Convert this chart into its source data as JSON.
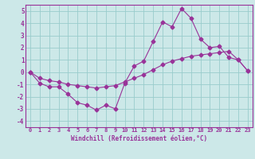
{
  "xlabel": "Windchill (Refroidissement éolien,°C)",
  "line1_x": [
    0,
    1,
    2,
    3,
    4,
    5,
    6,
    7,
    8,
    9,
    10,
    11,
    12,
    13,
    14,
    15,
    16,
    17,
    18,
    19,
    20,
    21,
    22,
    23
  ],
  "line1_y": [
    0,
    -0.9,
    -1.2,
    -1.2,
    -1.8,
    -2.5,
    -2.7,
    -3.1,
    -2.7,
    -3.0,
    -0.9,
    0.5,
    0.9,
    2.5,
    4.1,
    3.7,
    5.2,
    4.4,
    2.7,
    2.0,
    2.1,
    1.2,
    1.0,
    0.1
  ],
  "line2_x": [
    0,
    1,
    2,
    3,
    4,
    5,
    6,
    7,
    8,
    9,
    10,
    11,
    12,
    13,
    14,
    15,
    16,
    17,
    18,
    19,
    20,
    21,
    22,
    23
  ],
  "line2_y": [
    0,
    -0.5,
    -0.7,
    -0.8,
    -1.0,
    -1.1,
    -1.2,
    -1.3,
    -1.2,
    -1.1,
    -0.8,
    -0.5,
    -0.2,
    0.2,
    0.6,
    0.9,
    1.1,
    1.3,
    1.4,
    1.5,
    1.6,
    1.7,
    1.0,
    0.1
  ],
  "line_color": "#993399",
  "bg_color": "#cce8e8",
  "grid_color": "#99cccc",
  "xlim": [
    -0.5,
    23.5
  ],
  "ylim": [
    -4.5,
    5.5
  ],
  "yticks": [
    -4,
    -3,
    -2,
    -1,
    0,
    1,
    2,
    3,
    4,
    5
  ],
  "xticks": [
    0,
    1,
    2,
    3,
    4,
    5,
    6,
    7,
    8,
    9,
    10,
    11,
    12,
    13,
    14,
    15,
    16,
    17,
    18,
    19,
    20,
    21,
    22,
    23
  ],
  "xlabel_fontsize": 5.5,
  "tick_fontsize": 5.0
}
